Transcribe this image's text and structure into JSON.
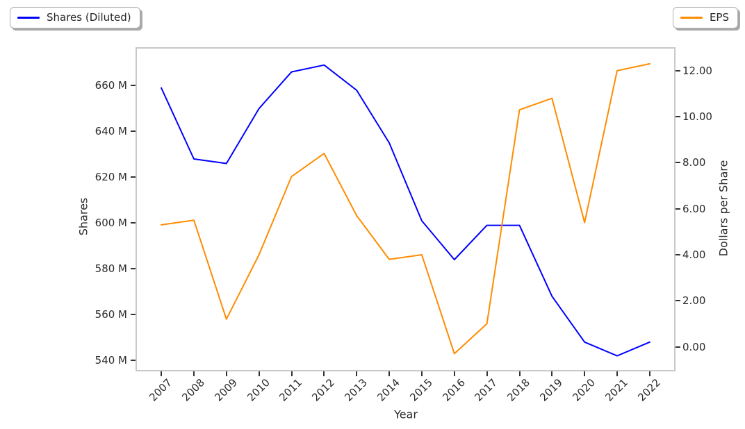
{
  "legends": {
    "shares": {
      "label": "Shares (Diluted)",
      "color": "#0000ff"
    },
    "eps": {
      "label": "EPS",
      "color": "#ff8c00"
    }
  },
  "chart_data": {
    "type": "line",
    "title": "",
    "xlabel": "Year",
    "ylabel_left": "Shares",
    "ylabel_right": "Dollars per Share",
    "x": [
      2007,
      2008,
      2009,
      2010,
      2011,
      2012,
      2013,
      2014,
      2015,
      2016,
      2017,
      2018,
      2019,
      2020,
      2021,
      2022
    ],
    "series": [
      {
        "name": "Shares (Diluted)",
        "axis": "left",
        "color": "#0000ff",
        "unit": "shares (millions)",
        "values": [
          659,
          628,
          626,
          650,
          666,
          669,
          658,
          635,
          601,
          584,
          599,
          599,
          568,
          548,
          542,
          548
        ]
      },
      {
        "name": "EPS",
        "axis": "right",
        "color": "#ff8c00",
        "unit": "dollars per share",
        "values": [
          5.3,
          5.5,
          1.2,
          4.0,
          7.4,
          8.4,
          5.7,
          3.8,
          4.0,
          -0.3,
          1.0,
          10.3,
          10.8,
          5.4,
          12.0,
          12.3
        ]
      }
    ],
    "left_axis": {
      "ticks": [
        "660 M",
        "640 M",
        "620 M",
        "600 M",
        "580 M",
        "560 M",
        "540 M"
      ],
      "tick_values": [
        660,
        640,
        620,
        600,
        580,
        560,
        540
      ],
      "ylim": [
        535.8,
        676.2
      ]
    },
    "right_axis": {
      "ticks": [
        "12.00",
        "10.00",
        "8.00",
        "6.00",
        "4.00",
        "2.00",
        "0.00"
      ],
      "tick_values": [
        12,
        10,
        8,
        6,
        4,
        2,
        0
      ],
      "ylim": [
        -1.01,
        12.96
      ]
    },
    "x_axis": {
      "ticks": [
        "2007",
        "2008",
        "2009",
        "2010",
        "2011",
        "2012",
        "2013",
        "2014",
        "2015",
        "2016",
        "2017",
        "2018",
        "2019",
        "2020",
        "2021",
        "2022"
      ],
      "xlim": [
        2006.25,
        2022.75
      ]
    },
    "grid": false,
    "legend_position": "outside top-left (Shares), outside top-right (EPS)"
  }
}
